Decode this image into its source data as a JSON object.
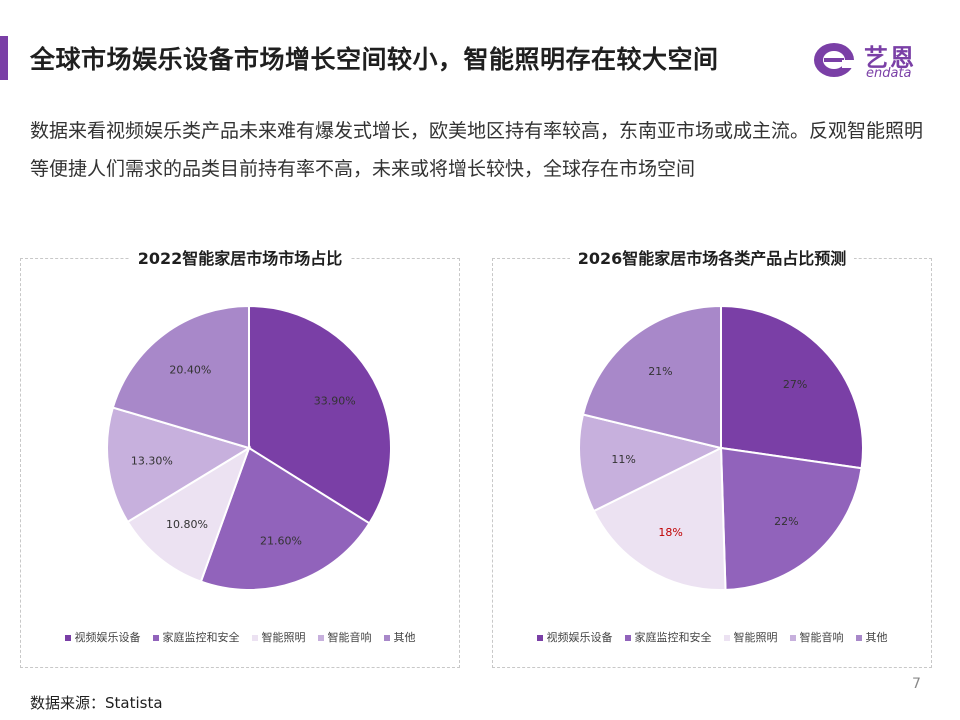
{
  "header": {
    "title": "全球市场娱乐设备市场增长空间较小，智能照明存在较大空间",
    "logo_cn": "艺恩",
    "logo_en": "endata"
  },
  "description": "数据来看视频娱乐类产品未来难有爆发式增长，欧美地区持有率较高，东南亚市场或成主流。反观智能照明等便捷人们需求的品类目前持有率不高，未来或将增长较快，全球存在市场空间",
  "colors": {
    "accent": "#7a3fa6",
    "series": [
      "#7a3fa6",
      "#9163bb",
      "#ece2f2",
      "#c7b0dd",
      "#a888c9"
    ],
    "highlight_label": "#c00000"
  },
  "chart_data": [
    {
      "type": "pie",
      "title": "2022智能家居市场市场占比",
      "categories": [
        "视频娱乐设备",
        "家庭监控和安全",
        "智能照明",
        "智能音响",
        "其他"
      ],
      "values": [
        33.9,
        21.6,
        10.8,
        13.3,
        20.4
      ],
      "labels": [
        "33.90%",
        "21.60%",
        "10.80%",
        "13.30%",
        "20.40%"
      ],
      "legend": "bottom"
    },
    {
      "type": "pie",
      "title": "2026智能家居市场各类产品占比预测",
      "categories": [
        "视频娱乐设备",
        "家庭监控和安全",
        "智能照明",
        "智能音响",
        "其他"
      ],
      "values": [
        27,
        22,
        18,
        11,
        21
      ],
      "labels": [
        "27%",
        "22%",
        "18%",
        "11%",
        "21%"
      ],
      "highlight_index": 2,
      "legend": "bottom"
    }
  ],
  "footer": {
    "source": "数据来源：Statista",
    "page_number": "7"
  }
}
